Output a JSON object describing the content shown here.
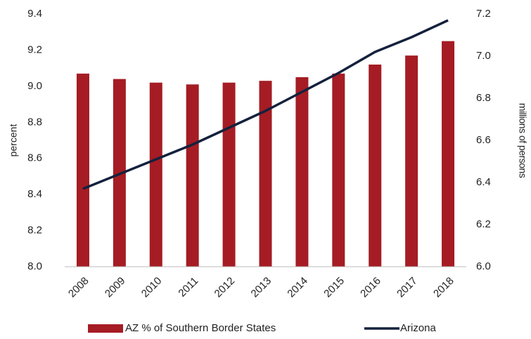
{
  "chart_data": {
    "type": "bar_line",
    "categories": [
      "2008",
      "2009",
      "2010",
      "2011",
      "2012",
      "2013",
      "2014",
      "2015",
      "2016",
      "2017",
      "2018"
    ],
    "series": [
      {
        "name": "AZ % of Southern Border States",
        "color": "#a51c24",
        "type": "bar",
        "values": [
          9.07,
          9.04,
          9.02,
          9.01,
          9.02,
          9.03,
          9.05,
          9.07,
          9.12,
          9.17,
          9.25
        ]
      },
      {
        "name": "Arizona",
        "color": "#14213d",
        "type": "line",
        "axis": "y2",
        "values": [
          6.37,
          6.44,
          6.51,
          6.58,
          6.66,
          6.74,
          6.83,
          6.92,
          7.02,
          7.09,
          7.17
        ]
      }
    ],
    "ylabel": "percent",
    "y2label": "millions of persons",
    "ylim": [
      8.0,
      9.4
    ],
    "yticks": [
      {
        "value": 8.0,
        "label": "8.0"
      },
      {
        "value": 8.2,
        "label": "8.2"
      },
      {
        "value": 8.4,
        "label": "8.4"
      },
      {
        "value": 8.6,
        "label": "8.6"
      },
      {
        "value": 8.8,
        "label": "8.8"
      },
      {
        "value": 9.0,
        "label": "9.0"
      },
      {
        "value": 9.2,
        "label": "9.2"
      },
      {
        "value": 9.4,
        "label": "9.4"
      }
    ],
    "y2lim": [
      6.0,
      7.2
    ],
    "y2ticks": [
      {
        "value": 6.0,
        "label": "6.0"
      },
      {
        "value": 6.2,
        "label": "6.2"
      },
      {
        "value": 6.4,
        "label": "6.4"
      },
      {
        "value": 6.6,
        "label": "6.6"
      },
      {
        "value": 6.8,
        "label": "6.8"
      },
      {
        "value": 7.0,
        "label": "7.0"
      },
      {
        "value": 7.2,
        "label": "7.2"
      }
    ],
    "grid": false,
    "legend": "bottom"
  }
}
